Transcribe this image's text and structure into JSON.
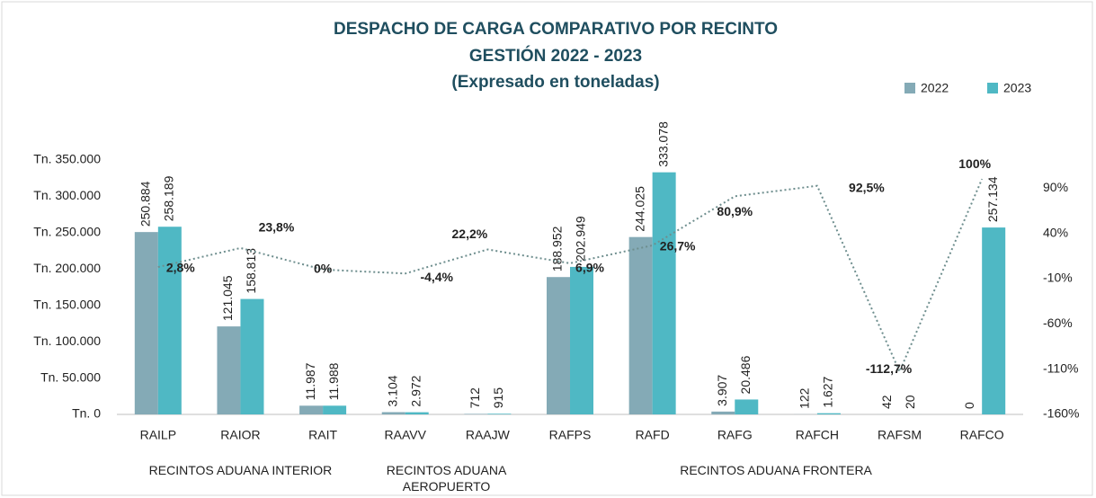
{
  "chart_data": {
    "type": "bar",
    "title": "DESPACHO DE CARGA COMPARATIVO POR RECINTO",
    "subtitle": "GESTIÓN 2022 - 2023",
    "annotation": "(Expresado en toneladas)",
    "categories": [
      "RAILP",
      "RAIOR",
      "RAIT",
      "RAAVV",
      "RAAJW",
      "RAFPS",
      "RAFD",
      "RAFG",
      "RAFCH",
      "RAFSM",
      "RAFCO"
    ],
    "groups": [
      "RECINTOS ADUANA INTERIOR",
      "RECINTOS ADUANA AEROPUERTO",
      "RECINTOS ADUANA FRONTERA"
    ],
    "series": [
      {
        "name": "2022",
        "color": "#84aab6",
        "values": [
          250884,
          121045,
          11987,
          3104,
          712,
          188952,
          244025,
          3907,
          122,
          42,
          0
        ],
        "value_labels": [
          "250.884",
          "121.045",
          "11.987",
          "3.104",
          "712",
          "188.952",
          "244.025",
          "3.907",
          "122",
          "42",
          "0"
        ]
      },
      {
        "name": "2023",
        "color": "#4fb8c4",
        "values": [
          258189,
          158813,
          11988,
          2972,
          915,
          202949,
          333078,
          20486,
          1627,
          20,
          257134
        ],
        "value_labels": [
          "258.189",
          "158.813",
          "11.988",
          "2.972",
          "915",
          "202.949",
          "333.078",
          "20.486",
          "1.627",
          "20",
          "257.134"
        ]
      },
      {
        "type": "line",
        "axis": "y2",
        "color": "#6e8e8e",
        "values": [
          2.8,
          23.8,
          0,
          -4.4,
          22.2,
          6.9,
          26.7,
          80.9,
          92.5,
          -112.7,
          100
        ],
        "value_labels": [
          "2,8%",
          "23,8%",
          "0%",
          "-4,4%",
          "22,2%",
          "6,9%",
          "26,7%",
          "80,9%",
          "92,5%",
          "-112,7%",
          "100%"
        ]
      }
    ],
    "ylim": [
      0,
      350000
    ],
    "yticks": [
      {
        "value": 0,
        "label": "Tn. 0"
      },
      {
        "value": 50000,
        "label": "Tn. 50.000"
      },
      {
        "value": 100000,
        "label": "Tn. 100.000"
      },
      {
        "value": 150000,
        "label": "Tn. 150.000"
      },
      {
        "value": 200000,
        "label": "Tn. 200.000"
      },
      {
        "value": 250000,
        "label": "Tn. 250.000"
      },
      {
        "value": 300000,
        "label": "Tn. 300.000"
      },
      {
        "value": 350000,
        "label": "Tn. 350.000"
      }
    ],
    "y2lim": [
      -160,
      121
    ],
    "y2ticks": [
      {
        "value": -160,
        "label": "-160%"
      },
      {
        "value": -110,
        "label": "-110%"
      },
      {
        "value": -60,
        "label": "-60%"
      },
      {
        "value": -10,
        "label": "-10%"
      },
      {
        "value": 40,
        "label": "40%"
      },
      {
        "value": 90,
        "label": "90%"
      }
    ],
    "legend": "top-right"
  }
}
